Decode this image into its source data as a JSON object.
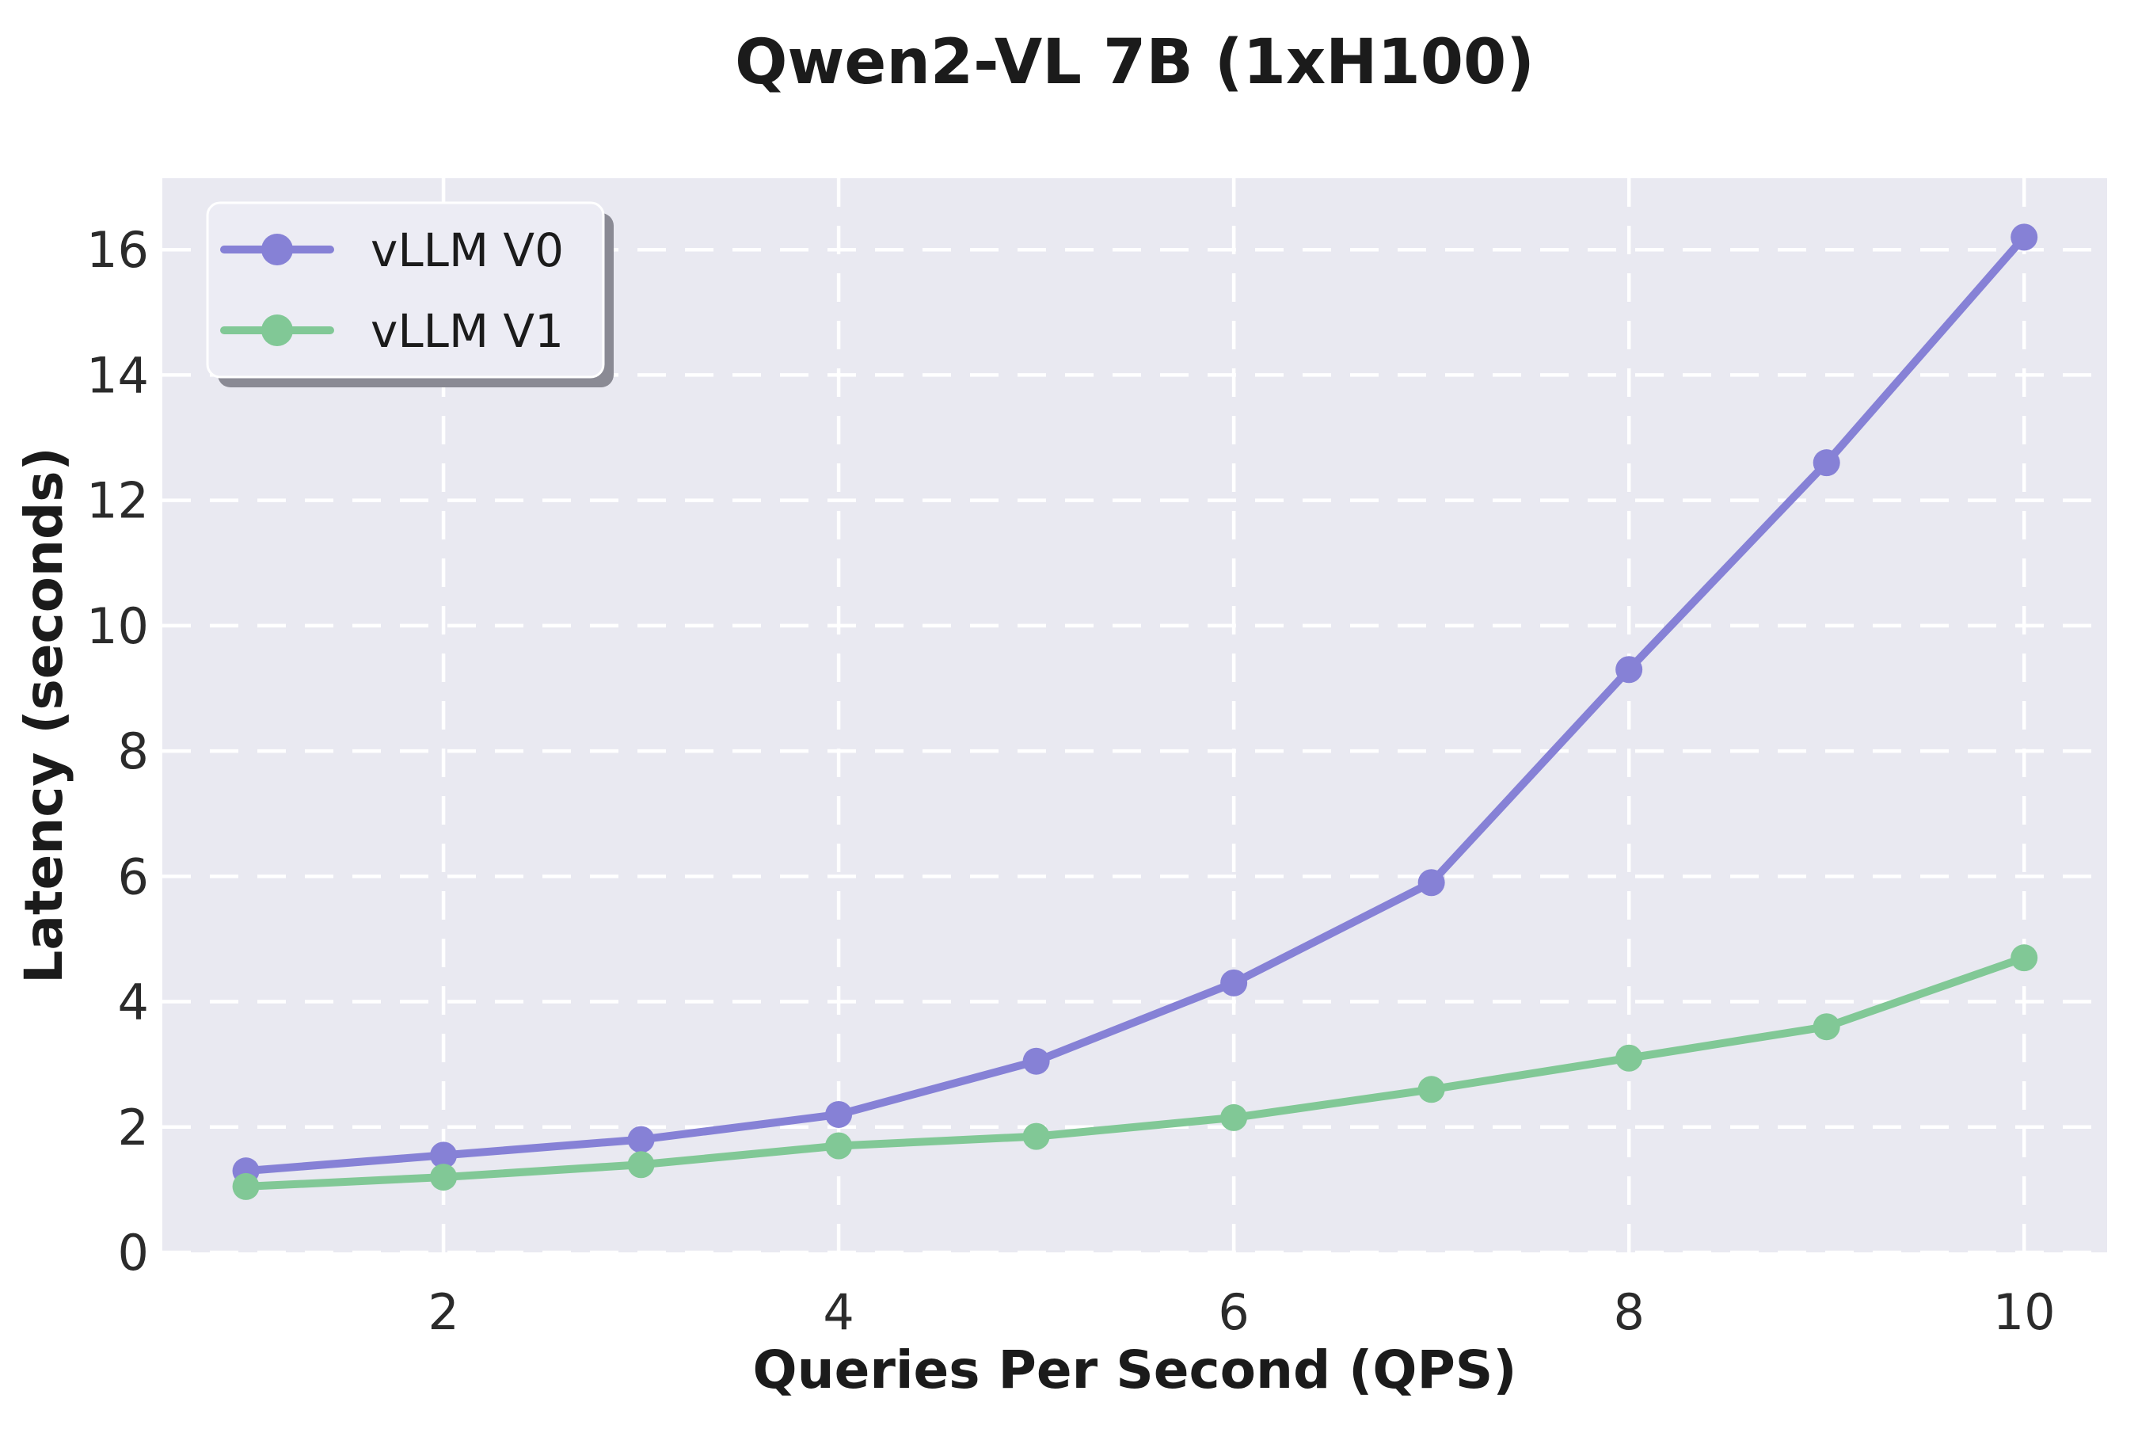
{
  "title": "Qwen2-VL 7B (1xH100)",
  "chart_data": {
    "type": "line",
    "title": "Qwen2-VL 7B (1xH100)",
    "xlabel": "Queries Per Second (QPS)",
    "ylabel": "Latency (seconds)",
    "x": [
      1,
      2,
      3,
      4,
      5,
      6,
      7,
      8,
      9,
      10
    ],
    "series": [
      {
        "name": "vLLM V0",
        "color": "#8681D6",
        "values": [
          1.3,
          1.55,
          1.8,
          2.2,
          3.05,
          4.3,
          5.9,
          9.3,
          12.6,
          16.2
        ]
      },
      {
        "name": "vLLM V1",
        "color": "#81C896",
        "values": [
          1.05,
          1.2,
          1.4,
          1.7,
          1.85,
          2.15,
          2.6,
          3.1,
          3.6,
          4.7
        ]
      }
    ],
    "x_ticks": [
      2,
      4,
      6,
      8,
      10
    ],
    "y_ticks": [
      0,
      2,
      4,
      6,
      8,
      10,
      12,
      14,
      16
    ],
    "xlim": [
      0.577,
      10.42
    ],
    "ylim": [
      0,
      17.14
    ],
    "grid": "white-dashed",
    "legend_position": "upper-left",
    "colors": {
      "plot_background": "#E9E9F1",
      "gridline": "#FFFFFF",
      "text": "#1B1B1B",
      "tick_text": "#2B2B2B",
      "legend_background": "#ECECF4",
      "legend_border": "#FFFFFF",
      "legend_shadow": "#8A8A94"
    }
  }
}
